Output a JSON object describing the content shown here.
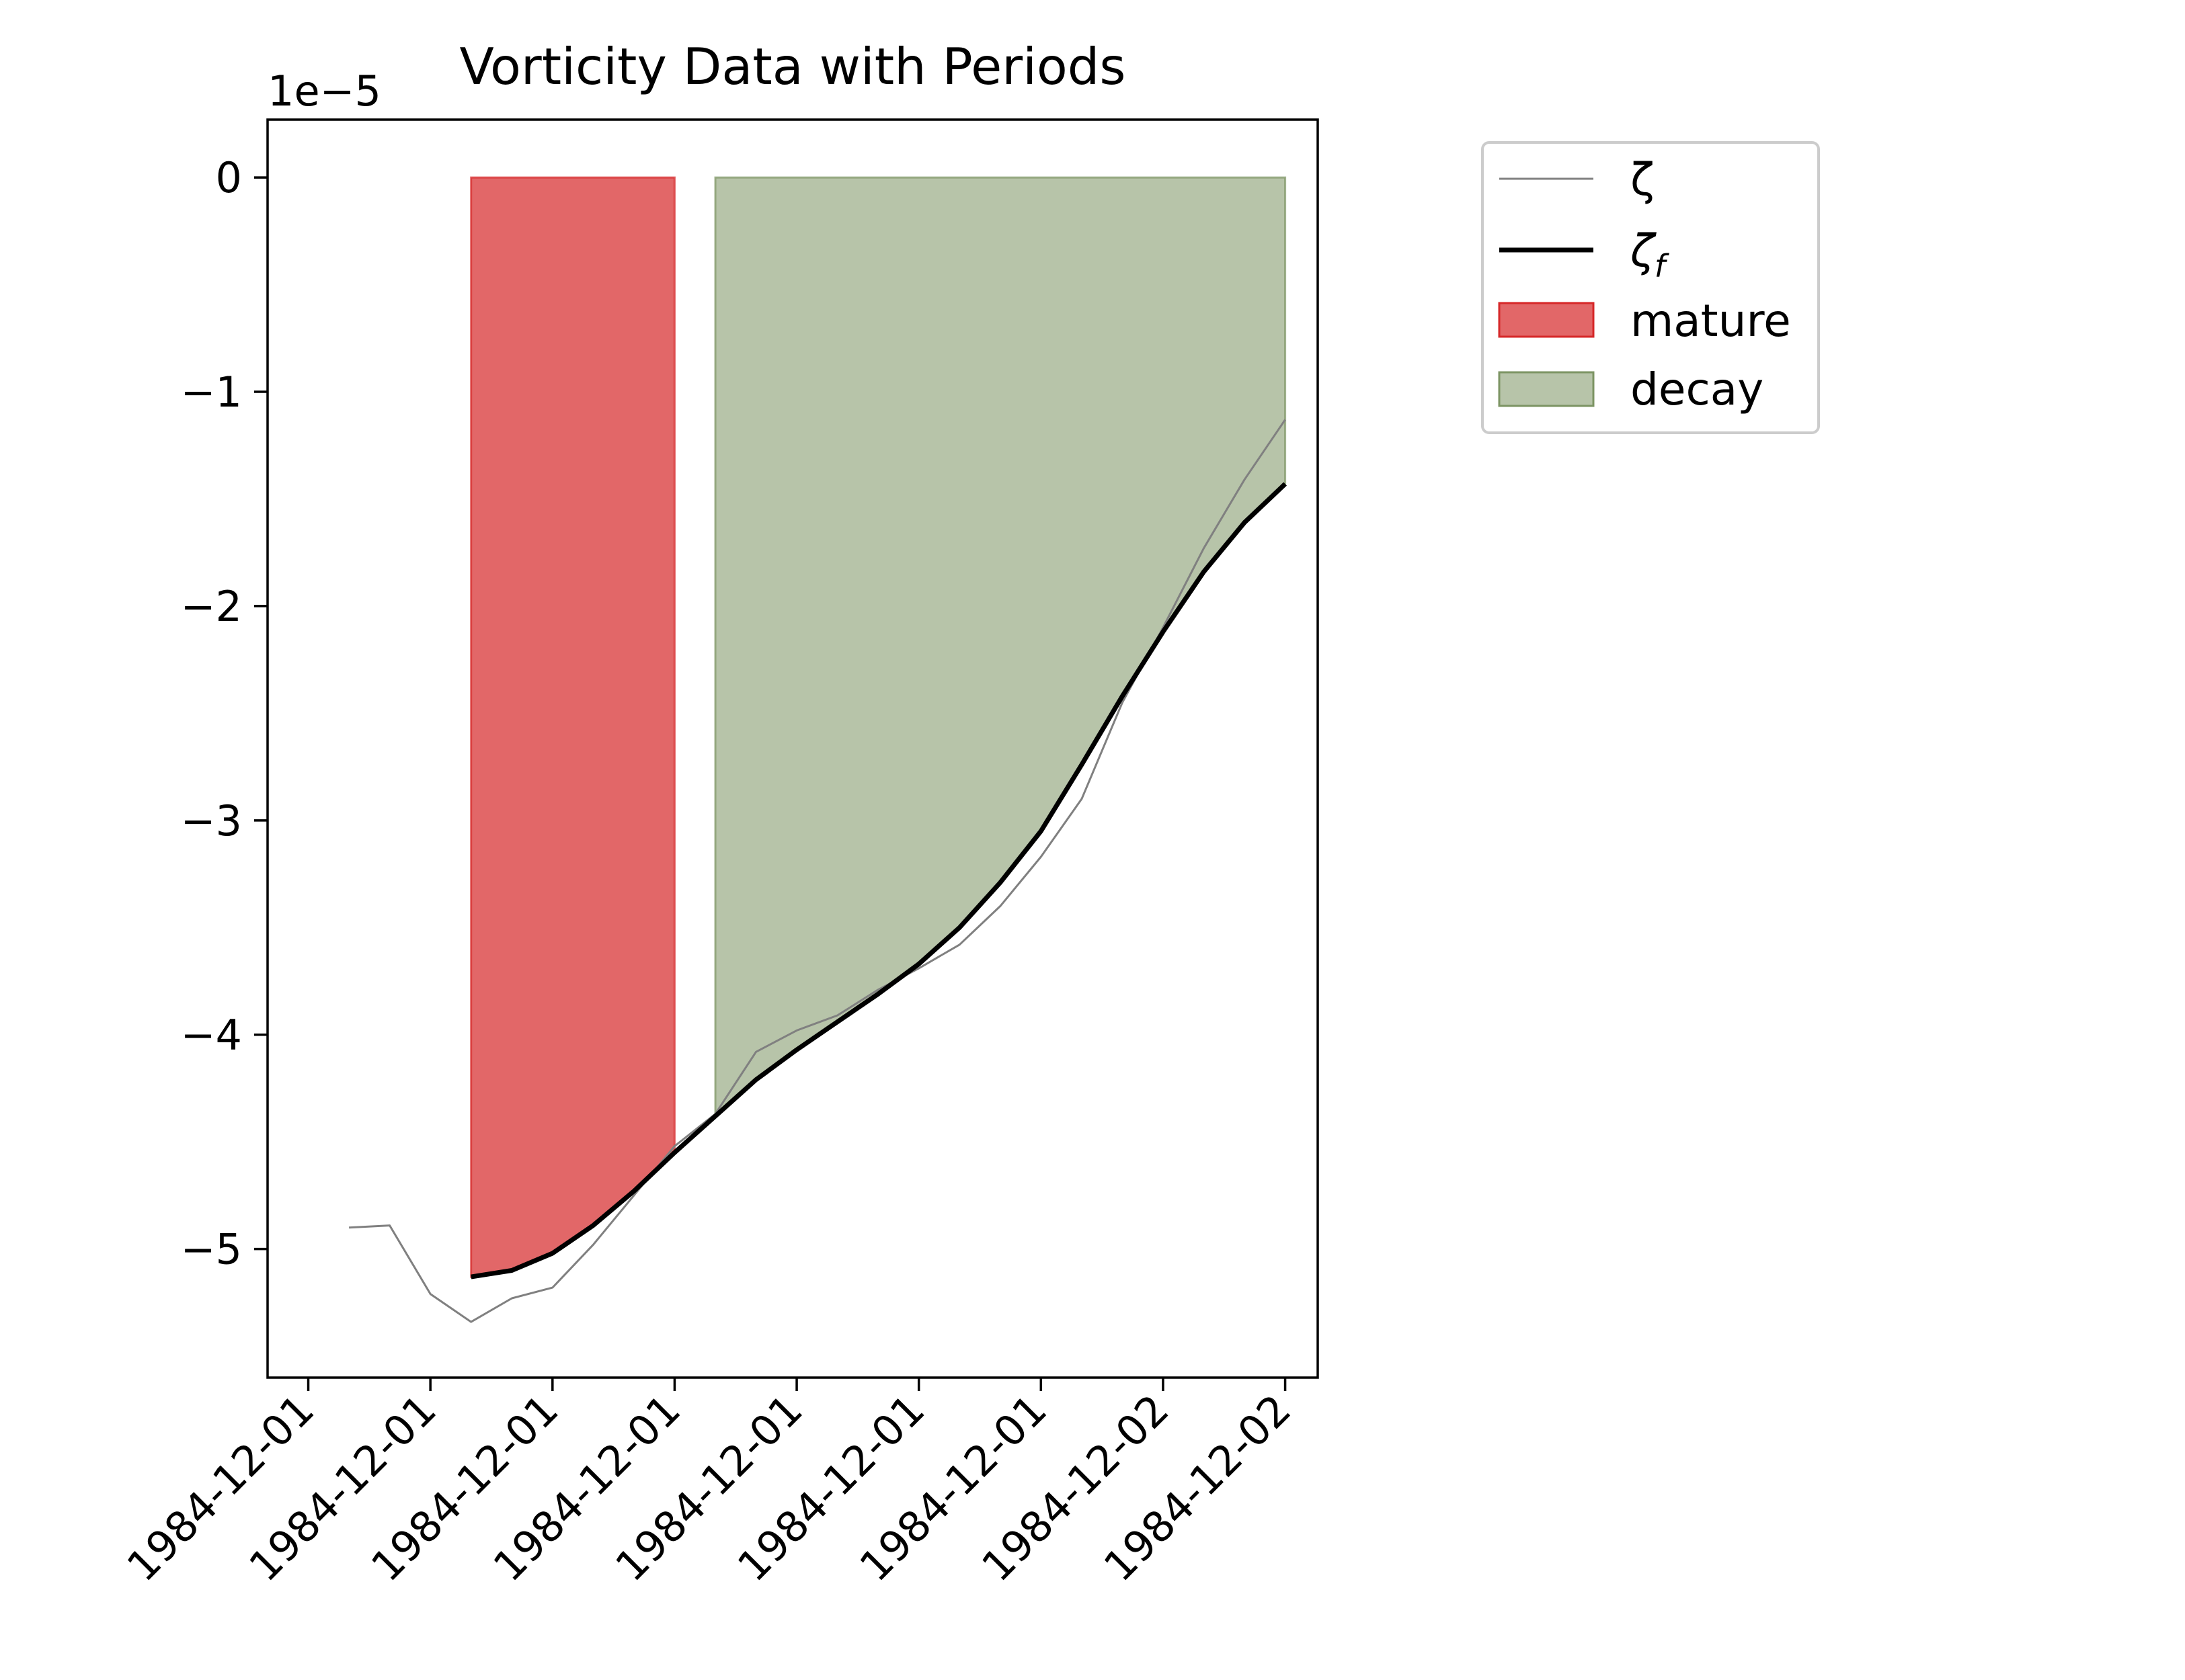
{
  "chart_data": {
    "type": "line",
    "title": "Vorticity Data with Periods",
    "offset_label": "1e−5",
    "xlabel": "",
    "ylabel": "",
    "ylim": [
      -5.6,
      0.27
    ],
    "yticks": [
      {
        "value": 0,
        "label": "0"
      },
      {
        "value": -1,
        "label": "−1"
      },
      {
        "value": -2,
        "label": "−2"
      },
      {
        "value": -3,
        "label": "−3"
      },
      {
        "value": -4,
        "label": "−4"
      },
      {
        "value": -5,
        "label": "−5"
      }
    ],
    "x_hours_offset_note_free": true,
    "xlim": [
      -1,
      24.8
    ],
    "xticks": [
      {
        "value": 0,
        "label": "1984-12-01"
      },
      {
        "value": 3,
        "label": "1984-12-01"
      },
      {
        "value": 6,
        "label": "1984-12-01"
      },
      {
        "value": 9,
        "label": "1984-12-01"
      },
      {
        "value": 12,
        "label": "1984-12-01"
      },
      {
        "value": 15,
        "label": "1984-12-01"
      },
      {
        "value": 18,
        "label": "1984-12-01"
      },
      {
        "value": 21,
        "label": "1984-12-02"
      },
      {
        "value": 24,
        "label": "1984-12-02"
      }
    ],
    "series": [
      {
        "name": "ζ",
        "color": "#808080",
        "x": [
          1,
          2,
          3,
          4,
          5,
          6,
          7,
          8,
          9,
          10,
          11,
          12,
          13,
          14,
          15,
          16,
          17,
          18,
          19,
          20,
          21,
          22,
          23,
          24
        ],
        "values": [
          -4.9,
          -4.89,
          -5.21,
          -5.34,
          -5.23,
          -5.18,
          -4.98,
          -4.75,
          -4.52,
          -4.37,
          -4.08,
          -3.98,
          -3.91,
          -3.79,
          -3.69,
          -3.58,
          -3.4,
          -3.17,
          -2.9,
          -2.45,
          -2.1,
          -1.73,
          -1.41,
          -1.13
        ]
      },
      {
        "name": "ζf",
        "color": "#000000",
        "x": [
          4,
          5,
          6,
          7,
          8,
          9,
          10,
          11,
          12,
          13,
          14,
          15,
          16,
          17,
          18,
          19,
          20,
          21,
          22,
          23,
          24
        ],
        "values": [
          -5.13,
          -5.1,
          -5.02,
          -4.89,
          -4.73,
          -4.55,
          -4.38,
          -4.21,
          -4.07,
          -3.94,
          -3.81,
          -3.67,
          -3.5,
          -3.29,
          -3.05,
          -2.74,
          -2.42,
          -2.12,
          -1.84,
          -1.61,
          -1.43
        ]
      }
    ],
    "periods": [
      {
        "name": "mature",
        "color": "#d62728",
        "x_start": 4,
        "x_end": 9,
        "fill_to": 0
      },
      {
        "name": "decay",
        "color": "#7c9463",
        "x_start": 10,
        "x_end": 24,
        "fill_to": 0
      }
    ],
    "legend": {
      "placement": "outside-right",
      "entries": [
        {
          "label": "ζ",
          "kind": "thin-line"
        },
        {
          "label_main": "ζ",
          "label_sub": "f",
          "kind": "thick-line"
        },
        {
          "label": "mature",
          "kind": "patch"
        },
        {
          "label": "decay",
          "kind": "patch"
        }
      ]
    },
    "grid": false
  }
}
